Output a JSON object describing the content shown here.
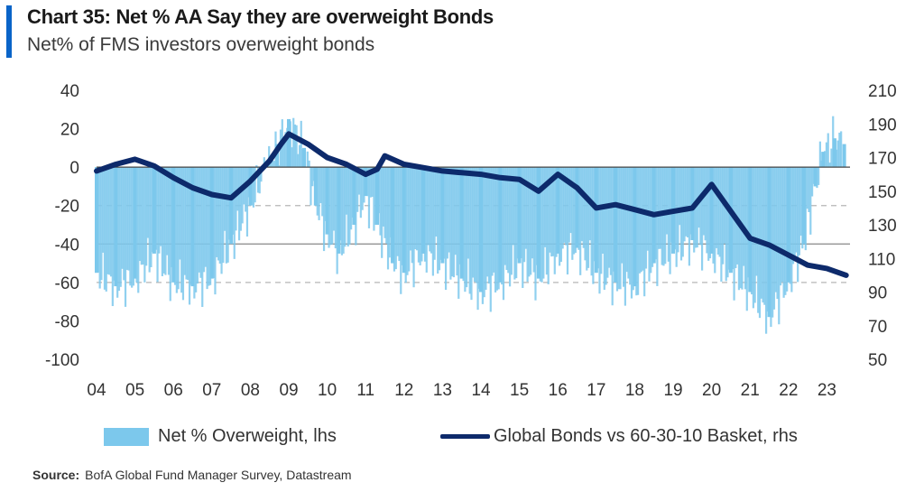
{
  "header": {
    "title": "Chart 35: Net % AA Say they are overweight Bonds",
    "subtitle": "Net% of FMS investors overweight bonds"
  },
  "legend": {
    "bars_label": "Net % Overweight, lhs",
    "line_label": "Global Bonds vs 60-30-10 Basket, rhs"
  },
  "source": {
    "label": "Source:",
    "text": "BofA Global Fund Manager Survey, Datastream"
  },
  "colors": {
    "bars": "#7cc8ec",
    "line": "#0d2a6b",
    "accent": "#0a64c8",
    "gridline_dashed": "#b5b5b5",
    "zero_line": "#444444"
  },
  "chart_data": {
    "type": "bar+line",
    "title": "Chart 35: Net % AA Say they are overweight Bonds",
    "subtitle": "Net% of FMS investors overweight bonds",
    "x_tick_labels": [
      "04",
      "05",
      "06",
      "07",
      "08",
      "09",
      "10",
      "11",
      "12",
      "13",
      "14",
      "15",
      "16",
      "17",
      "18",
      "19",
      "20",
      "21",
      "22",
      "23"
    ],
    "x_range": [
      2004.0,
      2023.6
    ],
    "y_left": {
      "label": "lhs",
      "range": [
        -100,
        40
      ],
      "ticks": [
        40,
        20,
        0,
        -20,
        -40,
        -60,
        -80,
        -100
      ]
    },
    "y_right": {
      "label": "rhs",
      "range": [
        50,
        210
      ],
      "ticks": [
        210,
        190,
        170,
        150,
        130,
        110,
        90,
        70,
        50
      ]
    },
    "reference_lines_left": [
      -20,
      -40,
      -60
    ],
    "grid": false,
    "legend_position": "bottom",
    "series": [
      {
        "name": "Net % Overweight, lhs",
        "kind": "bar",
        "axis": "left",
        "points": [
          [
            2004.0,
            -55
          ],
          [
            2004.5,
            -62
          ],
          [
            2005.0,
            -58
          ],
          [
            2005.5,
            -45
          ],
          [
            2006.0,
            -60
          ],
          [
            2006.5,
            -62
          ],
          [
            2007.0,
            -58
          ],
          [
            2007.5,
            -40
          ],
          [
            2008.0,
            -20
          ],
          [
            2008.4,
            0
          ],
          [
            2008.7,
            12
          ],
          [
            2009.0,
            25
          ],
          [
            2009.4,
            10
          ],
          [
            2009.7,
            -20
          ],
          [
            2010.0,
            -35
          ],
          [
            2010.3,
            -45
          ],
          [
            2010.7,
            -30
          ],
          [
            2011.0,
            -15
          ],
          [
            2011.3,
            -30
          ],
          [
            2011.7,
            -50
          ],
          [
            2012.0,
            -55
          ],
          [
            2012.5,
            -45
          ],
          [
            2013.0,
            -50
          ],
          [
            2013.5,
            -58
          ],
          [
            2014.0,
            -65
          ],
          [
            2014.5,
            -60
          ],
          [
            2015.0,
            -50
          ],
          [
            2015.5,
            -58
          ],
          [
            2016.0,
            -45
          ],
          [
            2016.5,
            -42
          ],
          [
            2017.0,
            -55
          ],
          [
            2017.5,
            -60
          ],
          [
            2018.0,
            -62
          ],
          [
            2018.5,
            -50
          ],
          [
            2019.0,
            -45
          ],
          [
            2019.5,
            -38
          ],
          [
            2020.0,
            -45
          ],
          [
            2020.5,
            -55
          ],
          [
            2021.0,
            -65
          ],
          [
            2021.5,
            -78
          ],
          [
            2022.0,
            -60
          ],
          [
            2022.4,
            -40
          ],
          [
            2022.7,
            -10
          ],
          [
            2022.9,
            8
          ],
          [
            2023.2,
            15
          ],
          [
            2023.45,
            12
          ]
        ]
      },
      {
        "name": "Global Bonds vs 60-30-10 Basket, rhs",
        "kind": "line",
        "axis": "right",
        "points": [
          [
            2004.0,
            162
          ],
          [
            2004.5,
            166
          ],
          [
            2005.0,
            169
          ],
          [
            2005.5,
            165
          ],
          [
            2006.0,
            158
          ],
          [
            2006.5,
            152
          ],
          [
            2007.0,
            148
          ],
          [
            2007.5,
            146
          ],
          [
            2008.0,
            156
          ],
          [
            2008.5,
            168
          ],
          [
            2008.8,
            178
          ],
          [
            2009.0,
            184
          ],
          [
            2009.5,
            178
          ],
          [
            2010.0,
            170
          ],
          [
            2010.5,
            166
          ],
          [
            2011.0,
            160
          ],
          [
            2011.3,
            163
          ],
          [
            2011.5,
            171
          ],
          [
            2012.0,
            166
          ],
          [
            2012.5,
            164
          ],
          [
            2013.0,
            162
          ],
          [
            2013.5,
            161
          ],
          [
            2014.0,
            160
          ],
          [
            2014.5,
            158
          ],
          [
            2015.0,
            157
          ],
          [
            2015.5,
            150
          ],
          [
            2016.0,
            160
          ],
          [
            2016.5,
            152
          ],
          [
            2017.0,
            140
          ],
          [
            2017.5,
            142
          ],
          [
            2018.0,
            139
          ],
          [
            2018.5,
            136
          ],
          [
            2019.0,
            138
          ],
          [
            2019.5,
            140
          ],
          [
            2020.0,
            154
          ],
          [
            2020.5,
            138
          ],
          [
            2021.0,
            122
          ],
          [
            2021.5,
            118
          ],
          [
            2022.0,
            112
          ],
          [
            2022.5,
            106
          ],
          [
            2023.0,
            104
          ],
          [
            2023.5,
            100
          ]
        ]
      }
    ]
  }
}
